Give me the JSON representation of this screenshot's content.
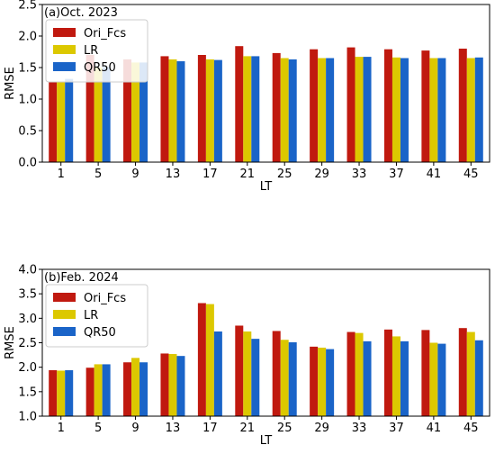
{
  "chart_data": [
    {
      "type": "bar",
      "title": "(a)Oct. 2023",
      "xlabel": "LT",
      "ylabel": "RMSE",
      "ylim": [
        0,
        2.5
      ],
      "yticks": [
        "0.0",
        "0.5",
        "1.0",
        "1.5",
        "2.0",
        "2.5"
      ],
      "grid": false,
      "legend_position": "top-left",
      "categories": [
        "1",
        "5",
        "9",
        "13",
        "17",
        "21",
        "25",
        "29",
        "33",
        "37",
        "41",
        "45"
      ],
      "series": [
        {
          "name": "Ori_Fcs",
          "color": "#c0190f",
          "values": [
            1.27,
            1.7,
            1.63,
            1.68,
            1.7,
            1.84,
            1.73,
            1.79,
            1.82,
            1.79,
            1.77,
            1.8
          ]
        },
        {
          "name": "LR",
          "color": "#dcc800",
          "values": [
            1.28,
            1.5,
            1.58,
            1.63,
            1.63,
            1.68,
            1.65,
            1.65,
            1.67,
            1.66,
            1.65,
            1.65
          ]
        },
        {
          "name": "QR50",
          "color": "#1a64c8",
          "values": [
            1.32,
            1.51,
            1.58,
            1.6,
            1.62,
            1.68,
            1.63,
            1.65,
            1.67,
            1.65,
            1.65,
            1.66
          ]
        }
      ]
    },
    {
      "type": "bar",
      "title": "(b)Feb. 2024",
      "xlabel": "LT",
      "ylabel": "RMSE",
      "ylim": [
        1.0,
        4.0
      ],
      "yticks": [
        "1.0",
        "1.5",
        "2.0",
        "2.5",
        "3.0",
        "3.5",
        "4.0"
      ],
      "grid": false,
      "legend_position": "top-left",
      "categories": [
        "1",
        "5",
        "9",
        "13",
        "17",
        "21",
        "25",
        "29",
        "33",
        "37",
        "41",
        "45"
      ],
      "series": [
        {
          "name": "Ori_Fcs",
          "color": "#c0190f",
          "values": [
            1.94,
            1.99,
            2.1,
            2.28,
            3.31,
            2.85,
            2.74,
            2.42,
            2.72,
            2.77,
            2.76,
            2.8
          ]
        },
        {
          "name": "LR",
          "color": "#dcc800",
          "values": [
            1.93,
            2.06,
            2.19,
            2.27,
            3.29,
            2.73,
            2.56,
            2.4,
            2.7,
            2.63,
            2.5,
            2.72
          ]
        },
        {
          "name": "QR50",
          "color": "#1a64c8",
          "values": [
            1.94,
            2.06,
            2.1,
            2.23,
            2.73,
            2.58,
            2.51,
            2.37,
            2.53,
            2.53,
            2.48,
            2.55
          ]
        }
      ]
    }
  ]
}
